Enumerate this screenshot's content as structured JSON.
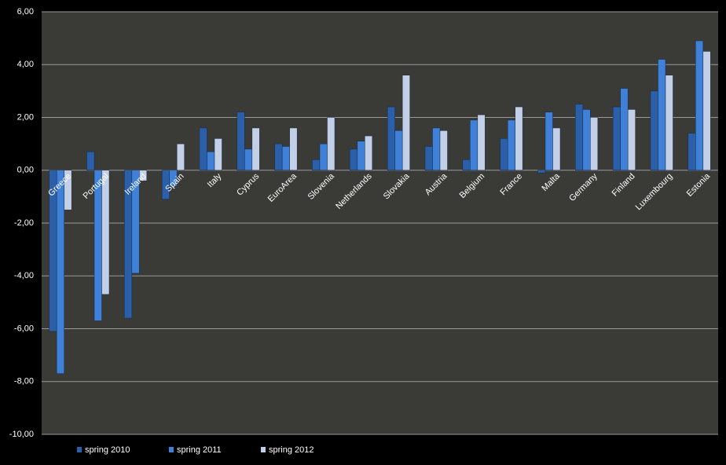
{
  "chart_data": {
    "type": "bar",
    "categories": [
      "Greece",
      "Portugal",
      "Ireland",
      "Spain",
      "Italy",
      "Cyprus",
      "EuroArea",
      "Slovenia",
      "Netherlands",
      "Slovakia",
      "Austria",
      "Belgium",
      "France",
      "Malta",
      "Germany",
      "Finland",
      "Luxembourg",
      "Estonia"
    ],
    "series": [
      {
        "name": "spring 2010",
        "color": "#2b5fa8",
        "values": [
          -6.1,
          0.7,
          -5.6,
          -1.1,
          1.6,
          2.2,
          1.0,
          0.4,
          0.8,
          2.4,
          0.9,
          0.4,
          1.2,
          -0.1,
          2.5,
          2.4,
          3.0,
          1.4
        ]
      },
      {
        "name": "spring 2011",
        "color": "#3f80d8",
        "values": [
          -7.7,
          -5.7,
          -3.9,
          -0.6,
          0.7,
          0.8,
          0.9,
          1.0,
          1.1,
          1.5,
          1.6,
          1.9,
          1.9,
          2.2,
          2.3,
          3.1,
          4.2,
          4.9
        ]
      },
      {
        "name": "spring 2012",
        "color": "#c2cfe6",
        "values": [
          -1.5,
          -4.7,
          -0.4,
          1.0,
          1.2,
          1.6,
          1.6,
          2.0,
          1.3,
          3.6,
          1.5,
          2.1,
          2.4,
          1.6,
          2.0,
          2.3,
          3.6,
          4.5
        ]
      }
    ],
    "ylim": [
      -10,
      6
    ],
    "yticks": [
      {
        "value": -10,
        "label": "-10,00"
      },
      {
        "value": -8,
        "label": "-8,00"
      },
      {
        "value": -6,
        "label": "-6,00"
      },
      {
        "value": -4,
        "label": "-4,00"
      },
      {
        "value": -2,
        "label": "-2,00"
      },
      {
        "value": 0,
        "label": "0,00"
      },
      {
        "value": 2,
        "label": "2,00"
      },
      {
        "value": 4,
        "label": "4,00"
      },
      {
        "value": 6,
        "label": "6,00"
      }
    ],
    "grid": true
  }
}
